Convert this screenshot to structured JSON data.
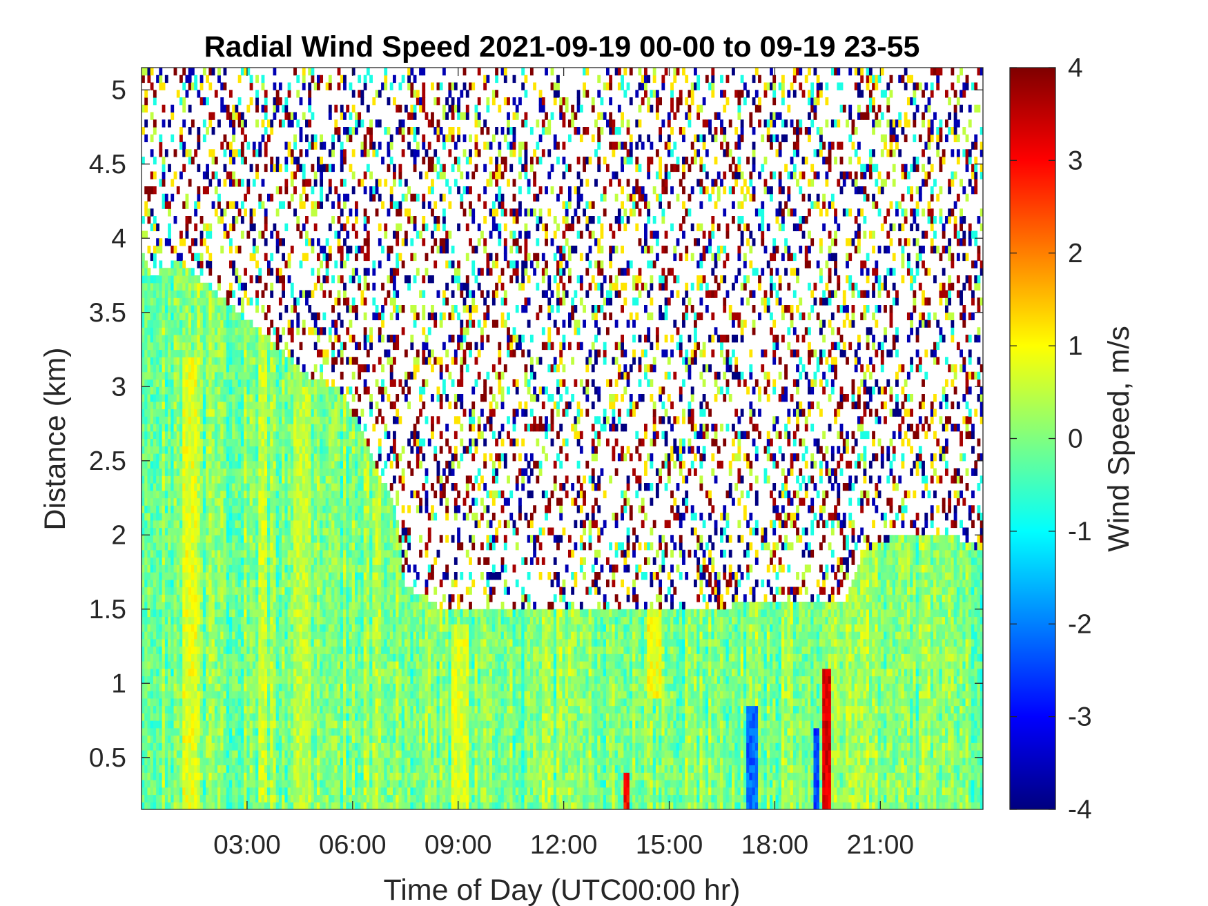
{
  "chart_data": {
    "type": "heatmap",
    "title": "Radial Wind Speed 2021-09-19 00-00 to 09-19 23-55",
    "xlabel": "Time of Day (UTC00:00 hr)",
    "ylabel": "Distance (km)",
    "x_range_hours": [
      0,
      23.917
    ],
    "y_range_km": [
      0.15,
      5.15
    ],
    "x_ticks": [
      {
        "value": 3,
        "label": "03:00"
      },
      {
        "value": 6,
        "label": "06:00"
      },
      {
        "value": 9,
        "label": "09:00"
      },
      {
        "value": 12,
        "label": "12:00"
      },
      {
        "value": 15,
        "label": "15:00"
      },
      {
        "value": 18,
        "label": "18:00"
      },
      {
        "value": 21,
        "label": "21:00"
      }
    ],
    "y_ticks": [
      {
        "value": 0.5,
        "label": "0.5"
      },
      {
        "value": 1,
        "label": "1"
      },
      {
        "value": 1.5,
        "label": "1.5"
      },
      {
        "value": 2,
        "label": "2"
      },
      {
        "value": 2.5,
        "label": "2.5"
      },
      {
        "value": 3,
        "label": "3"
      },
      {
        "value": 3.5,
        "label": "3.5"
      },
      {
        "value": 4,
        "label": "4"
      },
      {
        "value": 4.5,
        "label": "4.5"
      },
      {
        "value": 5,
        "label": "5"
      }
    ],
    "colorbar": {
      "label": "Wind Speed, m/s",
      "range": [
        -4,
        4
      ],
      "colormap": "jet",
      "ticks": [
        {
          "value": 4,
          "label": "4"
        },
        {
          "value": 3,
          "label": "3"
        },
        {
          "value": 2,
          "label": "2"
        },
        {
          "value": 1,
          "label": "1"
        },
        {
          "value": 0,
          "label": "0"
        },
        {
          "value": -1,
          "label": "-1"
        },
        {
          "value": -2,
          "label": "-2"
        },
        {
          "value": -3,
          "label": "-3"
        },
        {
          "value": -4,
          "label": "-4"
        }
      ]
    },
    "valid_data_top_km": [
      {
        "time": 0.0,
        "top": 3.95
      },
      {
        "time": 0.3,
        "top": 3.75
      },
      {
        "time": 1.0,
        "top": 3.85
      },
      {
        "time": 1.8,
        "top": 3.7
      },
      {
        "time": 2.5,
        "top": 3.55
      },
      {
        "time": 3.5,
        "top": 3.35
      },
      {
        "time": 4.2,
        "top": 3.2
      },
      {
        "time": 4.8,
        "top": 3.05
      },
      {
        "time": 5.6,
        "top": 3.0
      },
      {
        "time": 6.2,
        "top": 2.75
      },
      {
        "time": 6.8,
        "top": 2.4
      },
      {
        "time": 7.2,
        "top": 2.2
      },
      {
        "time": 7.5,
        "top": 1.65
      },
      {
        "time": 8.0,
        "top": 1.6
      },
      {
        "time": 8.5,
        "top": 1.5
      },
      {
        "time": 12.0,
        "top": 1.5
      },
      {
        "time": 15.0,
        "top": 1.5
      },
      {
        "time": 18.5,
        "top": 1.55
      },
      {
        "time": 20.0,
        "top": 1.55
      },
      {
        "time": 20.5,
        "top": 1.9
      },
      {
        "time": 21.5,
        "top": 2.0
      },
      {
        "time": 23.0,
        "top": 2.0
      },
      {
        "time": 23.917,
        "top": 1.9
      }
    ],
    "background_wind_speed_m_s": 0.0,
    "features": [
      {
        "time_start": 1.2,
        "time_end": 1.6,
        "dist_start": 0.15,
        "dist_end": 3.2,
        "value": 0.8
      },
      {
        "time_start": 3.3,
        "time_end": 3.6,
        "dist_start": 0.2,
        "dist_end": 3.4,
        "value": 0.6
      },
      {
        "time_start": 4.3,
        "time_end": 4.8,
        "dist_start": 0.15,
        "dist_end": 3.0,
        "value": 0.5
      },
      {
        "time_start": 8.8,
        "time_end": 9.3,
        "dist_start": 0.15,
        "dist_end": 1.4,
        "value": 0.7
      },
      {
        "time_start": 14.4,
        "time_end": 14.8,
        "dist_start": 0.9,
        "dist_end": 1.55,
        "value": 0.9
      },
      {
        "time_start": 17.2,
        "time_end": 17.5,
        "dist_start": 0.15,
        "dist_end": 0.85,
        "value": -2.2
      },
      {
        "time_start": 19.1,
        "time_end": 19.3,
        "dist_start": 0.15,
        "dist_end": 0.7,
        "value": -2.5
      },
      {
        "time_start": 19.35,
        "time_end": 19.6,
        "dist_start": 0.15,
        "dist_end": 1.1,
        "value": 3.3
      },
      {
        "time_start": 13.7,
        "time_end": 13.9,
        "dist_start": 0.15,
        "dist_end": 0.4,
        "value": 3.0
      }
    ]
  }
}
